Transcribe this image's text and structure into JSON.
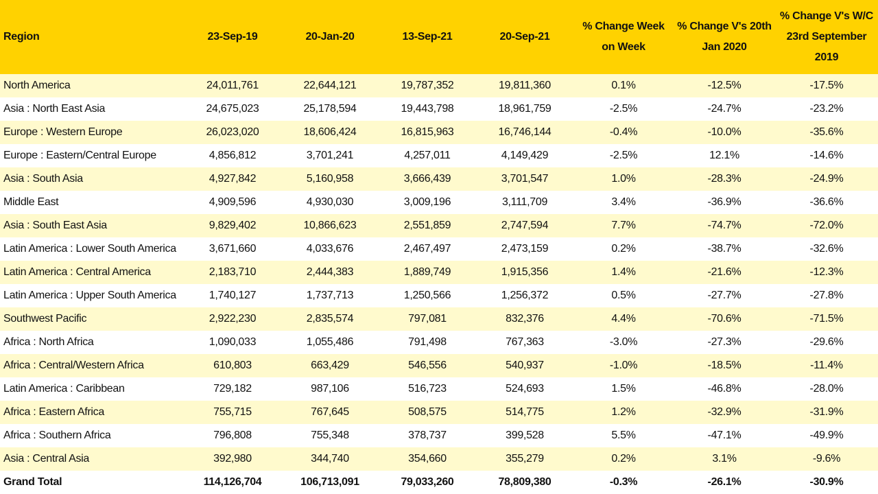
{
  "table": {
    "header": [
      "Region",
      "23-Sep-19",
      "20-Jan-20",
      "13-Sep-21",
      "20-Sep-21",
      "% Change Week on Week",
      "% Change V's 20th Jan 2020",
      "% Change V's W/C 23rd September 2019"
    ],
    "rows": [
      [
        "North America",
        "24,011,761",
        "22,644,121",
        "19,787,352",
        "19,811,360",
        "0.1%",
        "-12.5%",
        "-17.5%"
      ],
      [
        "Asia : North East Asia",
        "24,675,023",
        "25,178,594",
        "19,443,798",
        "18,961,759",
        "-2.5%",
        "-24.7%",
        "-23.2%"
      ],
      [
        "Europe : Western Europe",
        "26,023,020",
        "18,606,424",
        "16,815,963",
        "16,746,144",
        "-0.4%",
        "-10.0%",
        "-35.6%"
      ],
      [
        "Europe : Eastern/Central Europe",
        "4,856,812",
        "3,701,241",
        "4,257,011",
        "4,149,429",
        "-2.5%",
        "12.1%",
        "-14.6%"
      ],
      [
        "Asia : South Asia",
        "4,927,842",
        "5,160,958",
        "3,666,439",
        "3,701,547",
        "1.0%",
        "-28.3%",
        "-24.9%"
      ],
      [
        "Middle East",
        "4,909,596",
        "4,930,030",
        "3,009,196",
        "3,111,709",
        "3.4%",
        "-36.9%",
        "-36.6%"
      ],
      [
        "Asia : South East Asia",
        "9,829,402",
        "10,866,623",
        "2,551,859",
        "2,747,594",
        "7.7%",
        "-74.7%",
        "-72.0%"
      ],
      [
        "Latin America : Lower South America",
        "3,671,660",
        "4,033,676",
        "2,467,497",
        "2,473,159",
        "0.2%",
        "-38.7%",
        "-32.6%"
      ],
      [
        "Latin America : Central America",
        "2,183,710",
        "2,444,383",
        "1,889,749",
        "1,915,356",
        "1.4%",
        "-21.6%",
        "-12.3%"
      ],
      [
        "Latin America : Upper South America",
        "1,740,127",
        "1,737,713",
        "1,250,566",
        "1,256,372",
        "0.5%",
        "-27.7%",
        "-27.8%"
      ],
      [
        "Southwest Pacific",
        "2,922,230",
        "2,835,574",
        "797,081",
        "832,376",
        "4.4%",
        "-70.6%",
        "-71.5%"
      ],
      [
        "Africa : North Africa",
        "1,090,033",
        "1,055,486",
        "791,498",
        "767,363",
        "-3.0%",
        "-27.3%",
        "-29.6%"
      ],
      [
        "Africa : Central/Western Africa",
        "610,803",
        "663,429",
        "546,556",
        "540,937",
        "-1.0%",
        "-18.5%",
        "-11.4%"
      ],
      [
        "Latin America : Caribbean",
        "729,182",
        "987,106",
        "516,723",
        "524,693",
        "1.5%",
        "-46.8%",
        "-28.0%"
      ],
      [
        "Africa : Eastern Africa",
        "755,715",
        "767,645",
        "508,575",
        "514,775",
        "1.2%",
        "-32.9%",
        "-31.9%"
      ],
      [
        "Africa : Southern Africa",
        "796,808",
        "755,348",
        "378,737",
        "399,528",
        "5.5%",
        "-47.1%",
        "-49.9%"
      ],
      [
        "Asia : Central Asia",
        "392,980",
        "344,740",
        "354,660",
        "355,279",
        "0.2%",
        "3.1%",
        "-9.6%"
      ]
    ],
    "total": [
      "Grand Total",
      "114,126,704",
      "106,713,091",
      "79,033,260",
      "78,809,380",
      "-0.3%",
      "-26.1%",
      "-30.9%"
    ]
  }
}
